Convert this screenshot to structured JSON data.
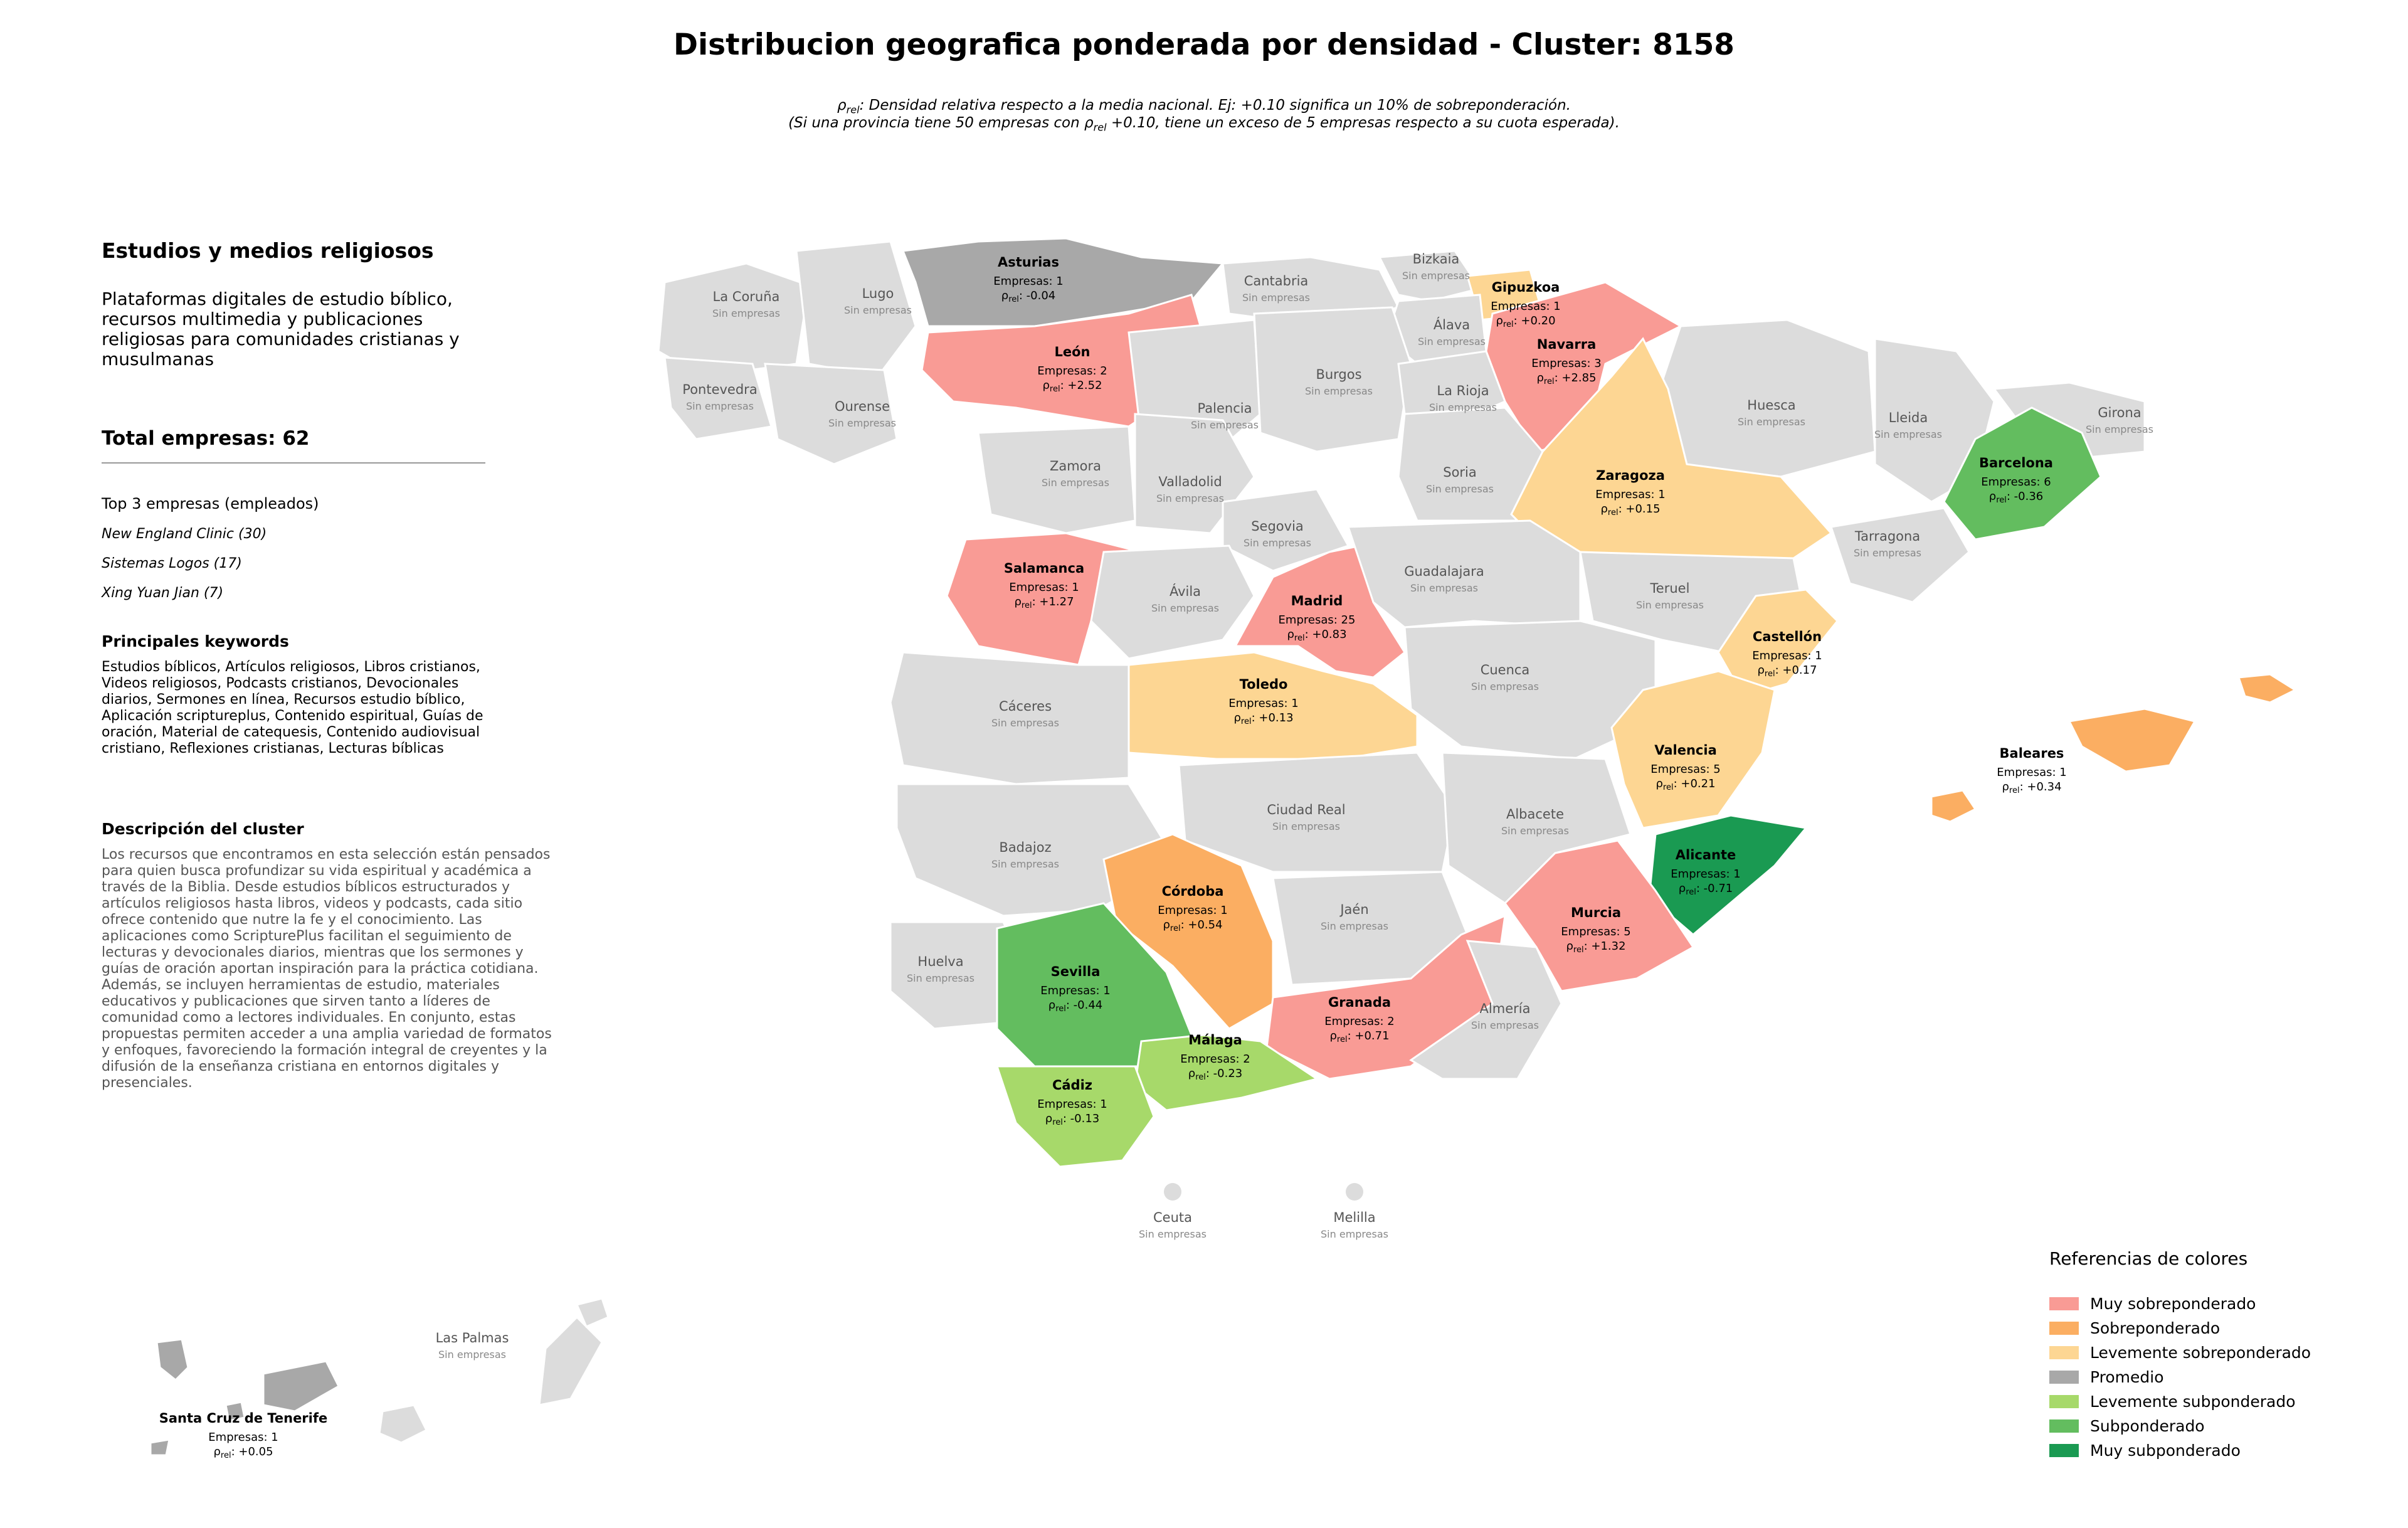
{
  "title": "Distribucion geografica ponderada por densidad - Cluster: 8158",
  "notes": {
    "line1_pre": "ρ",
    "line1_sub": "rel",
    "line1_post": ": Densidad relativa respecto a la media nacional. Ej: +0.10 significa un 10% de sobreponderación.",
    "line2_pre": "(Si una provincia tiene 50 empresas con ρ",
    "line2_sub": "rel",
    "line2_post": " +0.10, tiene un exceso de 5 empresas respecto a su cuota esperada)."
  },
  "panel": {
    "title": "Estudios y medios religiosos",
    "subtitle": "Plataformas digitales de estudio bíblico, recursos multimedia y publicaciones religiosas para comunidades cristianas y musulmanas",
    "total": "Total empresas: 62",
    "top_heading": "Top 3 empresas (empleados)",
    "top_companies": [
      "New England Clinic (30)",
      "Sistemas Logos (17)",
      "Xing Yuan Jian (7)"
    ],
    "keywords_heading": "Principales keywords",
    "keywords": "Estudios bíblicos, Artículos religiosos, Libros cristianos, Videos religiosos, Podcasts cristianos, Devocionales diarios, Sermones en línea, Recursos estudio bíblico, Aplicación scriptureplus, Contenido espiritual, Guías de oración, Material de catequesis, Contenido audiovisual cristiano, Reflexiones cristianas, Lecturas bíblicas",
    "description_heading": "Descripción del cluster",
    "description": "Los recursos que encontramos en esta selección están pensados para quien busca profundizar su vida espiritual y académica a través de la Biblia. Desde estudios bíblicos estructurados y artículos religiosos hasta libros, videos y podcasts, cada sitio ofrece contenido que nutre la fe y el conocimiento. Las aplicaciones como ScripturePlus facilitan el seguimiento de lecturas y devocionales diarios, mientras que los sermones y guías de oración aportan inspiración para la práctica cotidiana. Además, se incluyen herramientas de estudio, materiales educativos y publicaciones que sirven tanto a líderes de comunidad como a lectores individuales. En conjunto, estas propuestas permiten acceder a una amplia variedad de formatos y enfoques, favoreciendo la formación integral de creyentes y la difusión de la enseñanza cristiana en entornos digitales y presenciales."
  },
  "legend": {
    "title": "Referencias de colores",
    "items": [
      {
        "label": "Muy sobreponderado",
        "color": "#f99b95"
      },
      {
        "label": "Sobreponderado",
        "color": "#fbae62"
      },
      {
        "label": "Levemente sobreponderado",
        "color": "#fdd693"
      },
      {
        "label": "Promedio",
        "color": "#a8a8a8"
      },
      {
        "label": "Levemente subponderado",
        "color": "#a7d96a"
      },
      {
        "label": "Subponderado",
        "color": "#63bd5f"
      },
      {
        "label": "Muy subponderado",
        "color": "#1a9a52"
      }
    ]
  },
  "map": {
    "empty_color": "#dcdcdc",
    "empresas_prefix": "Empresas: ",
    "rho_symbol": "ρ",
    "rho_sub": "rel",
    "none_label": "Sin empresas",
    "provinces_with_data": [
      {
        "name": "Asturias",
        "empresas": 1,
        "rho": "-0.04",
        "category": "Promedio"
      },
      {
        "name": "León",
        "empresas": 2,
        "rho": "+2.52",
        "category": "Muy sobreponderado"
      },
      {
        "name": "Gipuzkoa",
        "empresas": 1,
        "rho": "+0.20",
        "category": "Levemente sobreponderado"
      },
      {
        "name": "Navarra",
        "empresas": 3,
        "rho": "+2.85",
        "category": "Muy sobreponderado"
      },
      {
        "name": "Zaragoza",
        "empresas": 1,
        "rho": "+0.15",
        "category": "Levemente sobreponderado"
      },
      {
        "name": "Barcelona",
        "empresas": 6,
        "rho": "-0.36",
        "category": "Subponderado"
      },
      {
        "name": "Salamanca",
        "empresas": 1,
        "rho": "+1.27",
        "category": "Muy sobreponderado"
      },
      {
        "name": "Madrid",
        "empresas": 25,
        "rho": "+0.83",
        "category": "Muy sobreponderado"
      },
      {
        "name": "Toledo",
        "empresas": 1,
        "rho": "+0.13",
        "category": "Levemente sobreponderado"
      },
      {
        "name": "Castellón",
        "empresas": 1,
        "rho": "+0.17",
        "category": "Levemente sobreponderado"
      },
      {
        "name": "Valencia",
        "empresas": 5,
        "rho": "+0.21",
        "category": "Levemente sobreponderado"
      },
      {
        "name": "Baleares",
        "empresas": 1,
        "rho": "+0.34",
        "category": "Sobreponderado"
      },
      {
        "name": "Alicante",
        "empresas": 1,
        "rho": "-0.71",
        "category": "Muy subponderado"
      },
      {
        "name": "Murcia",
        "empresas": 5,
        "rho": "+1.32",
        "category": "Muy sobreponderado"
      },
      {
        "name": "Córdoba",
        "empresas": 1,
        "rho": "+0.54",
        "category": "Sobreponderado"
      },
      {
        "name": "Sevilla",
        "empresas": 1,
        "rho": "-0.44",
        "category": "Subponderado"
      },
      {
        "name": "Granada",
        "empresas": 2,
        "rho": "+0.71",
        "category": "Muy sobreponderado"
      },
      {
        "name": "Málaga",
        "empresas": 2,
        "rho": "-0.23",
        "category": "Levemente subponderado"
      },
      {
        "name": "Cádiz",
        "empresas": 1,
        "rho": "-0.13",
        "category": "Levemente subponderado"
      },
      {
        "name": "Santa Cruz de Tenerife",
        "empresas": 1,
        "rho": "+0.05",
        "category": "Promedio"
      }
    ],
    "provinces_without_data": [
      "La Coruña",
      "Lugo",
      "Pontevedra",
      "Ourense",
      "Cantabria",
      "Bizkaia",
      "Álava",
      "Burgos",
      "Palencia",
      "La Rioja",
      "Huesca",
      "Lleida",
      "Girona",
      "Zamora",
      "Valladolid",
      "Soria",
      "Segovia",
      "Tarragona",
      "Ávila",
      "Guadalajara",
      "Teruel",
      "Cuenca",
      "Cáceres",
      "Ciudad Real",
      "Albacete",
      "Badajoz",
      "Jaén",
      "Huelva",
      "Almería",
      "Ceuta",
      "Melilla",
      "Las Palmas"
    ]
  }
}
